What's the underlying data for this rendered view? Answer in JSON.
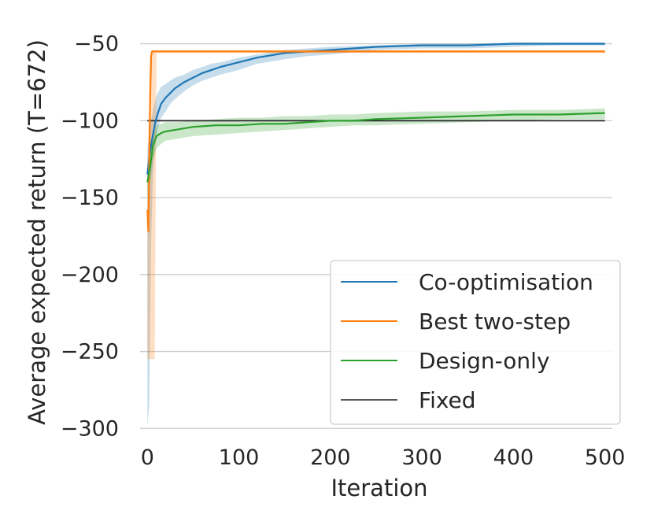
{
  "chart_data": {
    "type": "line",
    "xlabel": "Iteration",
    "ylabel": "Average expected return (T=672)",
    "xlim": [
      -8,
      508
    ],
    "ylim": [
      -306,
      -42
    ],
    "xticks": [
      0,
      100,
      200,
      300,
      400,
      500
    ],
    "xtick_labels": [
      "0",
      "100",
      "200",
      "300",
      "400",
      "500"
    ],
    "yticks": [
      -50,
      -100,
      -150,
      -200,
      -250,
      -300
    ],
    "ytick_labels": [
      "-50",
      "-100",
      "-150",
      "-200",
      "-250",
      "-300"
    ],
    "grid": "horizontal",
    "legend": {
      "placement": "lower-right"
    },
    "series": [
      {
        "name": "Co-optimisation",
        "color": "#1f77b4",
        "x": [
          0,
          2,
          4,
          6,
          8,
          10,
          12,
          15,
          20,
          25,
          30,
          40,
          50,
          60,
          70,
          80,
          100,
          120,
          150,
          175,
          200,
          250,
          300,
          350,
          400,
          450,
          500
        ],
        "y": [
          -135,
          -124,
          -116,
          -109,
          -103,
          -98,
          -94,
          -89,
          -85,
          -82,
          -79,
          -75,
          -72,
          -69,
          -67,
          -65,
          -62,
          -59,
          -56,
          -55,
          -54,
          -52,
          -51,
          -51,
          -50,
          -50,
          -50
        ],
        "band_upper": [
          -118,
          -108,
          -100,
          -93,
          -88,
          -84,
          -81,
          -78,
          -76,
          -74,
          -72,
          -70,
          -67,
          -65,
          -63,
          -62,
          -59,
          -57,
          -54,
          -53,
          -52,
          -51,
          -50,
          -50,
          -49,
          -49,
          -49
        ],
        "band_lower": [
          -298,
          -285,
          -180,
          -135,
          -118,
          -110,
          -104,
          -98,
          -94,
          -89,
          -86,
          -81,
          -77,
          -74,
          -72,
          -70,
          -67,
          -63,
          -60,
          -58,
          -57,
          -54,
          -53,
          -53,
          -52,
          -51,
          -51
        ]
      },
      {
        "name": "Best two-step",
        "color": "#ff7f0e",
        "x": [
          0,
          1,
          2,
          3,
          4,
          5,
          6,
          8,
          10,
          500
        ],
        "y": [
          -158,
          -172,
          -128,
          -86,
          -58,
          -55,
          -55,
          -55,
          -55,
          -55
        ],
        "band_upper": [
          -130,
          -110,
          -80,
          -60,
          -55,
          -54,
          -54,
          -54,
          -54,
          -54
        ],
        "band_lower": [
          -255,
          -255,
          -255,
          -255,
          -255,
          -255,
          -255,
          -255,
          -56,
          -56
        ]
      },
      {
        "name": "Design-only",
        "color": "#2ca02c",
        "x": [
          0,
          3,
          6,
          10,
          15,
          20,
          30,
          50,
          75,
          100,
          125,
          150,
          175,
          200,
          225,
          250,
          300,
          350,
          400,
          450,
          500
        ],
        "y": [
          -140,
          -130,
          -116,
          -110,
          -108,
          -107,
          -106,
          -104,
          -103,
          -103,
          -102,
          -102,
          -101,
          -100,
          -100,
          -99,
          -98,
          -97,
          -96,
          -96,
          -95
        ],
        "band_upper": [
          -130,
          -120,
          -107,
          -103,
          -102,
          -101,
          -101,
          -100,
          -99,
          -98,
          -98,
          -97,
          -97,
          -96,
          -96,
          -95,
          -94,
          -94,
          -93,
          -93,
          -92
        ],
        "band_lower": [
          -150,
          -142,
          -126,
          -118,
          -115,
          -113,
          -112,
          -110,
          -109,
          -108,
          -107,
          -106,
          -105,
          -104,
          -103,
          -103,
          -102,
          -101,
          -100,
          -99,
          -99
        ]
      },
      {
        "name": "Fixed",
        "color": "#262626",
        "legend_color": "#595959",
        "x": [
          0,
          500
        ],
        "y": [
          -100,
          -100
        ]
      }
    ]
  }
}
